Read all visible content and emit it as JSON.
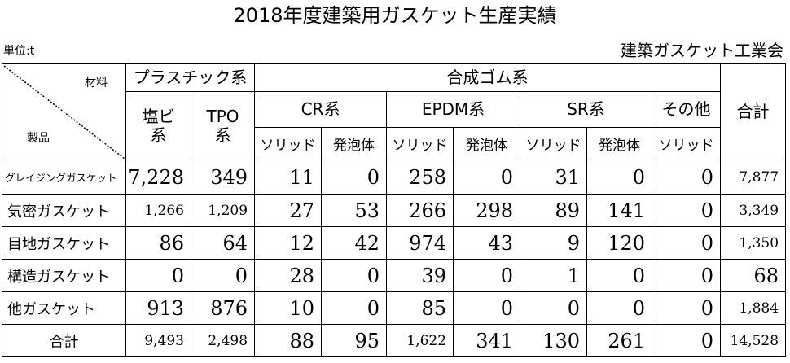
{
  "title": "2018年度建築用ガスケット生産実績",
  "unit": "単位:t",
  "org": "建築ガスケット工業会",
  "header": {
    "corner_top": "材料",
    "corner_bottom": "製品",
    "plastic": "プラスチック系",
    "rubber": "合成ゴム系",
    "total": "合計",
    "pvc": "塩ビ系",
    "tpo": "TPO系",
    "cr": "CR系",
    "epdm": "EPDM系",
    "sr": "SR系",
    "other": "その他",
    "solid": "ソリッド",
    "foam": "発泡体"
  },
  "rows": [
    {
      "label": "グレイジングガスケット",
      "values": [
        "7,228",
        "349",
        "11",
        "0",
        "258",
        "0",
        "31",
        "0",
        "0",
        "7,877"
      ]
    },
    {
      "label": "気密ガスケット",
      "values": [
        "1,266",
        "1,209",
        "27",
        "53",
        "266",
        "298",
        "89",
        "141",
        "0",
        "3,349"
      ]
    },
    {
      "label": "目地ガスケット",
      "values": [
        "86",
        "64",
        "12",
        "42",
        "974",
        "43",
        "9",
        "120",
        "0",
        "1,350"
      ]
    },
    {
      "label": "構造ガスケット",
      "values": [
        "0",
        "0",
        "28",
        "0",
        "39",
        "0",
        "1",
        "0",
        "0",
        "68"
      ]
    },
    {
      "label": "他ガスケット",
      "values": [
        "913",
        "876",
        "10",
        "0",
        "85",
        "0",
        "0",
        "0",
        "0",
        "1,884"
      ]
    },
    {
      "label": "合計",
      "values": [
        "9,493",
        "2,498",
        "88",
        "95",
        "1,622",
        "341",
        "130",
        "261",
        "0",
        "14,528"
      ]
    }
  ]
}
